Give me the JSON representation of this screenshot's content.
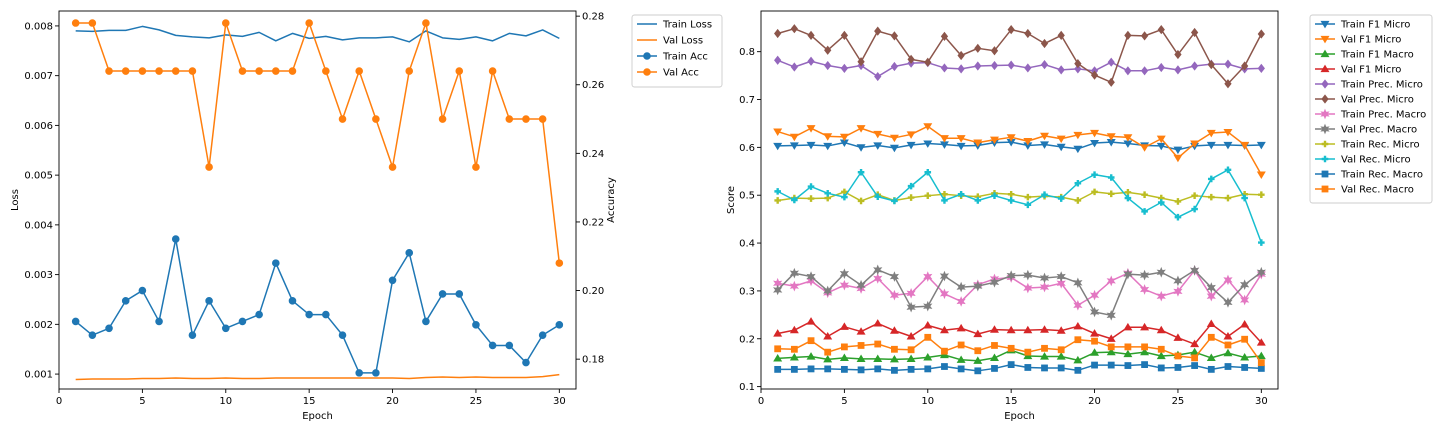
{
  "chart_data": [
    {
      "type": "line",
      "xlabel": "Epoch",
      "ylabel_left": "Loss",
      "ylabel_right": "Accuracy",
      "x": [
        1,
        2,
        3,
        4,
        5,
        6,
        7,
        8,
        9,
        10,
        11,
        12,
        13,
        14,
        15,
        16,
        17,
        18,
        19,
        20,
        21,
        22,
        23,
        24,
        25,
        26,
        27,
        28,
        29,
        30
      ],
      "xlim": [
        0.0,
        31.0
      ],
      "ylim_left": [
        0.0007,
        0.0083
      ],
      "ylim_right": [
        0.1713,
        0.2815
      ],
      "xticks": [
        0,
        5,
        10,
        15,
        20,
        25,
        30
      ],
      "yticks_left": [
        0.001,
        0.002,
        0.003,
        0.004,
        0.005,
        0.006,
        0.007,
        0.008
      ],
      "yticks_left_labels": [
        "0.001",
        "0.002",
        "0.003",
        "0.004",
        "0.005",
        "0.006",
        "0.007",
        "0.008"
      ],
      "yticks_right": [
        0.18,
        0.2,
        0.22,
        0.24,
        0.26,
        0.28
      ],
      "yticks_right_labels": [
        "0.18",
        "0.20",
        "0.22",
        "0.24",
        "0.26",
        "0.28"
      ],
      "legend_position": "outside-top-right",
      "series": [
        {
          "name": "Train Loss",
          "axis": "left",
          "color": "#1f77b4",
          "marker": "none",
          "values": [
            0.0079,
            0.00789,
            0.00791,
            0.00791,
            0.00799,
            0.00792,
            0.00781,
            0.00778,
            0.00776,
            0.00782,
            0.00779,
            0.00787,
            0.0077,
            0.00785,
            0.00775,
            0.00779,
            0.00772,
            0.00776,
            0.00776,
            0.00778,
            0.00768,
            0.0079,
            0.00776,
            0.00773,
            0.00778,
            0.0077,
            0.00785,
            0.0078,
            0.00792,
            0.00775
          ]
        },
        {
          "name": "Val Loss",
          "axis": "left",
          "color": "#ff7f0e",
          "marker": "none",
          "values": [
            0.00089,
            0.0009,
            0.0009,
            0.0009,
            0.00091,
            0.00091,
            0.00092,
            0.00091,
            0.00091,
            0.00092,
            0.00091,
            0.00091,
            0.00092,
            0.00092,
            0.00092,
            0.00092,
            0.00092,
            0.00092,
            0.00092,
            0.00092,
            0.00091,
            0.00093,
            0.00094,
            0.00093,
            0.00094,
            0.00093,
            0.00093,
            0.00093,
            0.00095,
            0.00099
          ]
        },
        {
          "name": "Train Acc",
          "axis": "right",
          "color": "#1f77b4",
          "marker": "circle",
          "values": [
            0.191,
            0.187,
            0.189,
            0.197,
            0.2,
            0.191,
            0.215,
            0.187,
            0.197,
            0.189,
            0.191,
            0.193,
            0.208,
            0.197,
            0.193,
            0.193,
            0.187,
            0.176,
            0.176,
            0.203,
            0.211,
            0.191,
            0.199,
            0.199,
            0.19,
            0.184,
            0.184,
            0.179,
            0.187,
            0.19
          ]
        },
        {
          "name": "Val Acc",
          "axis": "right",
          "color": "#ff7f0e",
          "marker": "circle",
          "values": [
            0.278,
            0.278,
            0.264,
            0.264,
            0.264,
            0.264,
            0.264,
            0.264,
            0.236,
            0.278,
            0.264,
            0.264,
            0.264,
            0.264,
            0.278,
            0.264,
            0.25,
            0.264,
            0.25,
            0.236,
            0.264,
            0.278,
            0.25,
            0.264,
            0.236,
            0.264,
            0.25,
            0.25,
            0.25,
            0.208
          ]
        }
      ]
    },
    {
      "type": "line",
      "xlabel": "Epoch",
      "ylabel": "Score",
      "x": [
        1,
        2,
        3,
        4,
        5,
        6,
        7,
        8,
        9,
        10,
        11,
        12,
        13,
        14,
        15,
        16,
        17,
        18,
        19,
        20,
        21,
        22,
        23,
        24,
        25,
        26,
        27,
        28,
        29,
        30
      ],
      "xlim": [
        0.0,
        31.0
      ],
      "ylim": [
        0.095,
        0.885
      ],
      "xticks": [
        0,
        5,
        10,
        15,
        20,
        25,
        30
      ],
      "yticks": [
        0.1,
        0.2,
        0.3,
        0.4,
        0.5,
        0.6,
        0.7,
        0.8
      ],
      "ytick_labels": [
        "0.1",
        "0.2",
        "0.3",
        "0.4",
        "0.5",
        "0.6",
        "0.7",
        "0.8"
      ],
      "legend_position": "outside-top-right",
      "series": [
        {
          "name": "Train F1 Micro",
          "color": "#1f77b4",
          "marker": "tri_down",
          "values": [
            0.603,
            0.604,
            0.605,
            0.603,
            0.61,
            0.6,
            0.604,
            0.599,
            0.605,
            0.608,
            0.606,
            0.603,
            0.604,
            0.61,
            0.611,
            0.604,
            0.606,
            0.601,
            0.597,
            0.609,
            0.611,
            0.608,
            0.604,
            0.603,
            0.595,
            0.603,
            0.605,
            0.605,
            0.604,
            0.605
          ]
        },
        {
          "name": "Val F1 Micro",
          "color": "#ff7f0e",
          "marker": "tri_down",
          "values": [
            0.633,
            0.622,
            0.64,
            0.623,
            0.622,
            0.64,
            0.628,
            0.62,
            0.627,
            0.644,
            0.619,
            0.619,
            0.61,
            0.616,
            0.621,
            0.613,
            0.624,
            0.618,
            0.626,
            0.63,
            0.623,
            0.621,
            0.6,
            0.618,
            0.578,
            0.608,
            0.63,
            0.632,
            0.605,
            0.543
          ]
        },
        {
          "name": "Train F1 Macro",
          "color": "#2ca02c",
          "marker": "tri_up",
          "values": [
            0.159,
            0.161,
            0.163,
            0.157,
            0.16,
            0.158,
            0.158,
            0.157,
            0.158,
            0.161,
            0.166,
            0.156,
            0.154,
            0.16,
            0.176,
            0.164,
            0.163,
            0.163,
            0.155,
            0.171,
            0.172,
            0.168,
            0.172,
            0.164,
            0.166,
            0.172,
            0.16,
            0.17,
            0.161,
            0.164
          ]
        },
        {
          "name": "Val F1 Micro",
          "color": "#d62728",
          "marker": "tri_up",
          "values": [
            0.211,
            0.218,
            0.236,
            0.205,
            0.225,
            0.215,
            0.232,
            0.217,
            0.205,
            0.228,
            0.218,
            0.222,
            0.21,
            0.219,
            0.218,
            0.218,
            0.219,
            0.217,
            0.226,
            0.211,
            0.2,
            0.224,
            0.224,
            0.218,
            0.202,
            0.189,
            0.231,
            0.205,
            0.23,
            0.192
          ]
        },
        {
          "name": "Train Prec. Micro",
          "color": "#9467bd",
          "marker": "diamond",
          "values": [
            0.782,
            0.768,
            0.78,
            0.771,
            0.765,
            0.771,
            0.748,
            0.769,
            0.776,
            0.777,
            0.766,
            0.764,
            0.77,
            0.771,
            0.772,
            0.766,
            0.773,
            0.762,
            0.764,
            0.76,
            0.778,
            0.76,
            0.76,
            0.767,
            0.762,
            0.77,
            0.774,
            0.774,
            0.764,
            0.765
          ]
        },
        {
          "name": "Val Prec. Micro",
          "color": "#8c564b",
          "marker": "diamond",
          "values": [
            0.838,
            0.848,
            0.834,
            0.803,
            0.834,
            0.779,
            0.843,
            0.833,
            0.784,
            0.778,
            0.832,
            0.792,
            0.807,
            0.802,
            0.846,
            0.838,
            0.817,
            0.834,
            0.775,
            0.751,
            0.736,
            0.834,
            0.833,
            0.846,
            0.794,
            0.84,
            0.773,
            0.733,
            0.77,
            0.837
          ]
        },
        {
          "name": "Train Prec. Macro",
          "color": "#e377c2",
          "marker": "star",
          "values": [
            0.316,
            0.31,
            0.321,
            0.296,
            0.312,
            0.305,
            0.326,
            0.291,
            0.295,
            0.33,
            0.294,
            0.278,
            0.313,
            0.325,
            0.328,
            0.306,
            0.308,
            0.316,
            0.27,
            0.291,
            0.321,
            0.337,
            0.303,
            0.289,
            0.299,
            0.343,
            0.289,
            0.323,
            0.281,
            0.335
          ]
        },
        {
          "name": "Val Prec. Macro",
          "color": "#7f7f7f",
          "marker": "star",
          "values": [
            0.302,
            0.337,
            0.33,
            0.3,
            0.336,
            0.312,
            0.344,
            0.33,
            0.266,
            0.268,
            0.331,
            0.308,
            0.31,
            0.318,
            0.332,
            0.333,
            0.327,
            0.33,
            0.317,
            0.256,
            0.249,
            0.335,
            0.333,
            0.339,
            0.321,
            0.343,
            0.307,
            0.276,
            0.313,
            0.339
          ]
        },
        {
          "name": "Train Rec. Micro",
          "color": "#bcbd22",
          "marker": "plus",
          "values": [
            0.489,
            0.494,
            0.493,
            0.494,
            0.507,
            0.488,
            0.501,
            0.489,
            0.495,
            0.499,
            0.502,
            0.499,
            0.497,
            0.504,
            0.502,
            0.496,
            0.498,
            0.496,
            0.489,
            0.507,
            0.503,
            0.506,
            0.501,
            0.494,
            0.487,
            0.499,
            0.496,
            0.494,
            0.502,
            0.501
          ]
        },
        {
          "name": "Val Rec. Micro",
          "color": "#17becf",
          "marker": "plus",
          "values": [
            0.508,
            0.49,
            0.518,
            0.504,
            0.496,
            0.548,
            0.497,
            0.488,
            0.519,
            0.548,
            0.489,
            0.502,
            0.489,
            0.499,
            0.489,
            0.48,
            0.501,
            0.493,
            0.525,
            0.543,
            0.537,
            0.494,
            0.466,
            0.485,
            0.454,
            0.471,
            0.534,
            0.553,
            0.494,
            0.401
          ]
        },
        {
          "name": "Train Rec. Macro",
          "color": "#1f77b4",
          "marker": "square",
          "values": [
            0.136,
            0.136,
            0.137,
            0.137,
            0.136,
            0.135,
            0.137,
            0.134,
            0.136,
            0.137,
            0.142,
            0.137,
            0.133,
            0.138,
            0.146,
            0.14,
            0.139,
            0.139,
            0.134,
            0.145,
            0.145,
            0.144,
            0.146,
            0.139,
            0.14,
            0.144,
            0.136,
            0.142,
            0.14,
            0.138
          ]
        },
        {
          "name": "Val Rec. Macro",
          "color": "#ff7f0e",
          "marker": "square",
          "values": [
            0.179,
            0.178,
            0.196,
            0.172,
            0.183,
            0.186,
            0.189,
            0.178,
            0.177,
            0.203,
            0.174,
            0.187,
            0.175,
            0.186,
            0.18,
            0.172,
            0.18,
            0.177,
            0.198,
            0.195,
            0.183,
            0.183,
            0.183,
            0.178,
            0.164,
            0.16,
            0.203,
            0.187,
            0.199,
            0.15
          ]
        }
      ]
    }
  ]
}
